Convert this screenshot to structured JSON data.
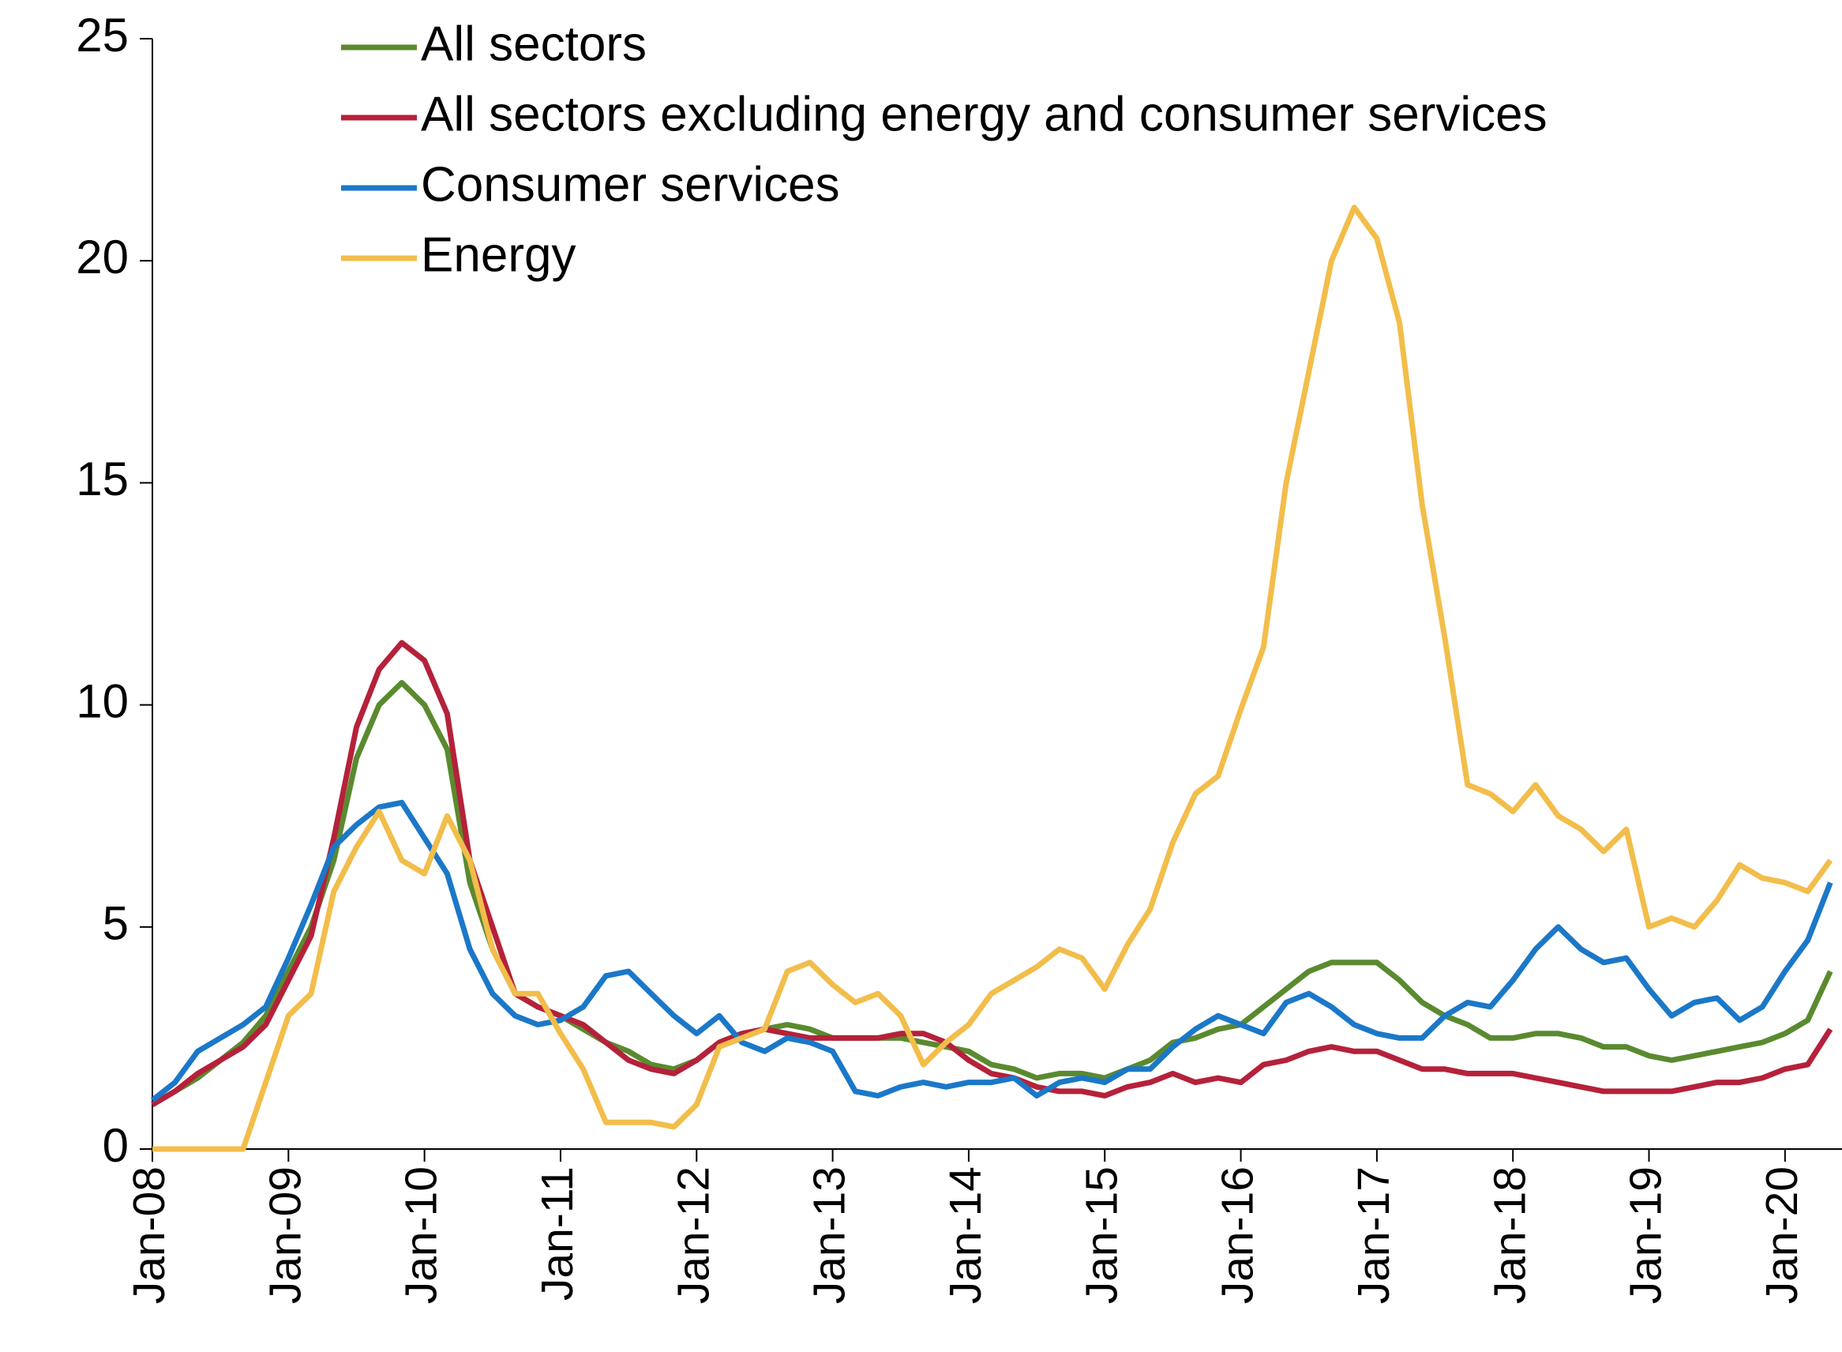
{
  "chart_data": {
    "type": "line",
    "categories": [
      "Jan-08",
      null,
      null,
      null,
      null,
      null,
      "Jan-09",
      null,
      null,
      null,
      null,
      null,
      "Jan-10",
      null,
      null,
      null,
      null,
      null,
      "Jan-11",
      null,
      null,
      null,
      null,
      null,
      "Jan-12",
      null,
      null,
      null,
      null,
      null,
      "Jan-13",
      null,
      null,
      null,
      null,
      null,
      "Jan-14",
      null,
      null,
      null,
      null,
      null,
      "Jan-15",
      null,
      null,
      null,
      null,
      null,
      "Jan-16",
      null,
      null,
      null,
      null,
      null,
      "Jan-17",
      null,
      null,
      null,
      null,
      null,
      "Jan-18",
      null,
      null,
      null,
      null,
      null,
      "Jan-19",
      null,
      null,
      null,
      null,
      null,
      "Jan-20",
      null,
      null
    ],
    "series": [
      {
        "name": "All sectors",
        "color": "#5a8a2f",
        "values": [
          1.0,
          1.3,
          1.6,
          2.0,
          2.4,
          3.0,
          4.0,
          5.0,
          6.5,
          8.8,
          10.0,
          10.5,
          10.0,
          9.0,
          6.0,
          4.5,
          3.5,
          3.2,
          3.0,
          2.7,
          2.4,
          2.2,
          1.9,
          1.8,
          2.0,
          2.4,
          2.6,
          2.7,
          2.8,
          2.7,
          2.5,
          2.5,
          2.5,
          2.5,
          2.4,
          2.3,
          2.2,
          1.9,
          1.8,
          1.6,
          1.7,
          1.7,
          1.6,
          1.8,
          2.0,
          2.4,
          2.5,
          2.7,
          2.8,
          3.2,
          3.6,
          4.0,
          4.2,
          4.2,
          4.2,
          3.8,
          3.3,
          3.0,
          2.8,
          2.5,
          2.5,
          2.6,
          2.6,
          2.5,
          2.3,
          2.3,
          2.1,
          2.0,
          2.1,
          2.2,
          2.3,
          2.4,
          2.6,
          2.9,
          4.0
        ]
      },
      {
        "name": "All sectors excluding energy and consumer services",
        "color": "#b5213a",
        "values": [
          1.0,
          1.3,
          1.7,
          2.0,
          2.3,
          2.8,
          3.8,
          4.8,
          7.0,
          9.5,
          10.8,
          11.4,
          11.0,
          9.8,
          6.5,
          5.0,
          3.5,
          3.2,
          3.0,
          2.8,
          2.4,
          2.0,
          1.8,
          1.7,
          2.0,
          2.4,
          2.6,
          2.7,
          2.6,
          2.5,
          2.5,
          2.5,
          2.5,
          2.6,
          2.6,
          2.4,
          2.0,
          1.7,
          1.6,
          1.4,
          1.3,
          1.3,
          1.2,
          1.4,
          1.5,
          1.7,
          1.5,
          1.6,
          1.5,
          1.9,
          2.0,
          2.2,
          2.3,
          2.2,
          2.2,
          2.0,
          1.8,
          1.8,
          1.7,
          1.7,
          1.7,
          1.6,
          1.5,
          1.4,
          1.3,
          1.3,
          1.3,
          1.3,
          1.4,
          1.5,
          1.5,
          1.6,
          1.8,
          1.9,
          2.7
        ]
      },
      {
        "name": "Consumer services",
        "color": "#1b78c8",
        "values": [
          1.1,
          1.5,
          2.2,
          2.5,
          2.8,
          3.2,
          4.3,
          5.5,
          6.8,
          7.3,
          7.7,
          7.8,
          7.0,
          6.2,
          4.5,
          3.5,
          3.0,
          2.8,
          2.9,
          3.2,
          3.9,
          4.0,
          3.5,
          3.0,
          2.6,
          3.0,
          2.4,
          2.2,
          2.5,
          2.4,
          2.2,
          1.3,
          1.2,
          1.4,
          1.5,
          1.4,
          1.5,
          1.5,
          1.6,
          1.2,
          1.5,
          1.6,
          1.5,
          1.8,
          1.8,
          2.3,
          2.7,
          3.0,
          2.8,
          2.6,
          3.3,
          3.5,
          3.2,
          2.8,
          2.6,
          2.5,
          2.5,
          3.0,
          3.3,
          3.2,
          3.8,
          4.5,
          5.0,
          4.5,
          4.2,
          4.3,
          3.6,
          3.0,
          3.3,
          3.4,
          2.9,
          3.2,
          4.0,
          4.7,
          6.0
        ]
      },
      {
        "name": "Energy",
        "color": "#f2bd4a",
        "values": [
          0,
          0,
          0,
          0,
          0,
          1.5,
          3.0,
          3.5,
          5.8,
          6.8,
          7.6,
          6.5,
          6.2,
          7.5,
          6.5,
          4.5,
          3.5,
          3.5,
          2.6,
          1.8,
          0.6,
          0.6,
          0.6,
          0.5,
          1.0,
          2.3,
          2.5,
          2.7,
          4.0,
          4.2,
          3.7,
          3.3,
          3.5,
          3.0,
          1.9,
          2.4,
          2.8,
          3.5,
          3.8,
          4.1,
          4.5,
          4.3,
          3.6,
          4.6,
          5.4,
          6.9,
          8.0,
          8.4,
          9.9,
          11.3,
          15.0,
          17.5,
          20.0,
          21.2,
          20.5,
          18.6,
          14.5,
          11.5,
          8.2,
          8.0,
          7.6,
          8.2,
          7.5,
          7.2,
          6.7,
          7.2,
          5.0,
          5.2,
          5.0,
          5.6,
          6.4,
          6.1,
          6.0,
          5.8,
          6.5
        ]
      }
    ],
    "ylim": [
      0,
      25
    ],
    "yticks": [
      0,
      5,
      10,
      15,
      20,
      25
    ],
    "legend": "top-left"
  }
}
